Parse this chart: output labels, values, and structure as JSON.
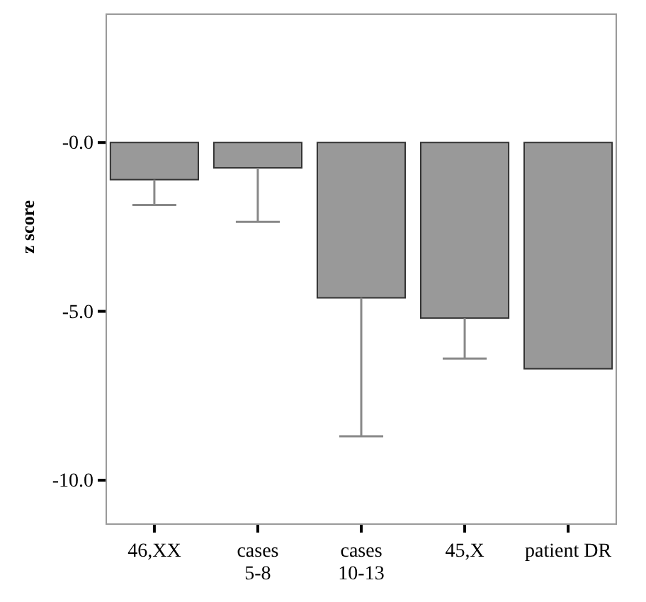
{
  "chart_data": {
    "type": "bar",
    "ylabel": "z score",
    "categories": [
      "46,XX",
      "cases\n5-8",
      "cases\n10-13",
      "45,X",
      "patient DR"
    ],
    "series": [
      {
        "color": "#999999",
        "values": [
          -1.1,
          -0.75,
          -4.6,
          -5.2,
          -6.7
        ],
        "errors": [
          [
            -1.85,
            -1.1
          ],
          [
            -2.35,
            -0.75
          ],
          [
            -8.7,
            -4.6
          ],
          [
            -6.4,
            -5.2
          ],
          null
        ]
      }
    ],
    "ylim": [
      -11.3,
      3.8
    ],
    "yticks": [
      {
        "value": 0,
        "label": "-0.0"
      },
      {
        "value": -5,
        "label": "-5.0"
      },
      {
        "value": -10,
        "label": "-10.0"
      }
    ]
  }
}
